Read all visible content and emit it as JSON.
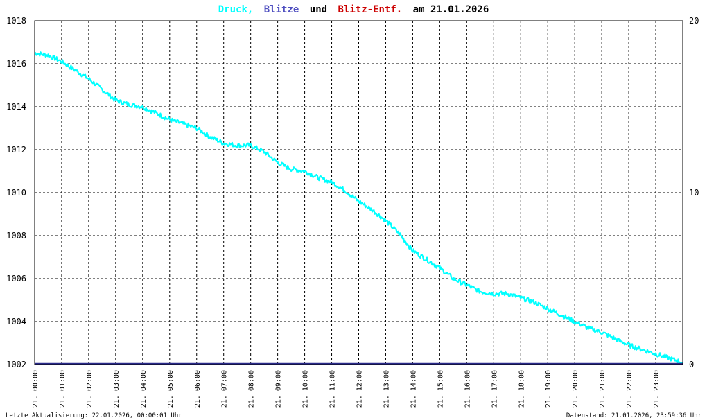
{
  "title": {
    "part1": "Druck,",
    "part2": "Blitze",
    "part3": "und",
    "part4": "Blitz-Entf.",
    "part5": "am 21.01.2026"
  },
  "colors": {
    "pressure": "#00ffff",
    "lightning": "#5050c0",
    "distance": "#cc0000",
    "text": "#000000",
    "grid": "#000000",
    "blitz_line": "#2a2a8a"
  },
  "footer": {
    "left": "Letzte Aktualisierung: 22.01.2026, 00:00:01 Uhr",
    "right": "Datenstand: 21.01.2026, 23:59:36 Uhr"
  },
  "chart_data": {
    "type": "line",
    "title": "Druck, Blitze und Blitz-Entf. am 21.01.2026",
    "x_ticks": [
      "21. 00:00",
      "21. 01:00",
      "21. 02:00",
      "21. 03:00",
      "21. 04:00",
      "21. 05:00",
      "21. 06:00",
      "21. 07:00",
      "21. 08:00",
      "21. 09:00",
      "21. 10:00",
      "21. 11:00",
      "21. 12:00",
      "21. 13:00",
      "21. 14:00",
      "21. 15:00",
      "21. 16:00",
      "21. 17:00",
      "21. 18:00",
      "21. 19:00",
      "21. 20:00",
      "21. 21:00",
      "21. 22:00",
      "21. 23:00"
    ],
    "y_left": {
      "ticks": [
        1002,
        1004,
        1006,
        1008,
        1010,
        1012,
        1014,
        1016,
        1018
      ],
      "range": [
        1002,
        1018
      ]
    },
    "y_right": {
      "ticks": [
        0,
        10,
        20
      ],
      "range": [
        0,
        20
      ]
    },
    "x_range_hours": [
      0,
      24
    ],
    "grid": true,
    "series": [
      {
        "name": "Druck",
        "axis": "left",
        "x_hours": [
          0.0,
          0.5,
          1.0,
          1.5,
          2.0,
          2.5,
          3.0,
          3.5,
          4.0,
          4.5,
          5.0,
          5.5,
          6.0,
          6.5,
          7.0,
          7.5,
          8.0,
          8.5,
          9.0,
          9.5,
          10.0,
          10.5,
          11.0,
          11.5,
          12.0,
          12.5,
          13.0,
          13.5,
          14.0,
          14.5,
          15.0,
          15.5,
          16.0,
          16.5,
          17.0,
          17.5,
          18.0,
          18.5,
          19.0,
          19.5,
          20.0,
          20.5,
          21.0,
          21.5,
          22.0,
          22.5,
          23.0,
          23.5,
          23.98
        ],
        "values": [
          1016.5,
          1016.4,
          1016.1,
          1015.7,
          1015.3,
          1014.8,
          1014.3,
          1014.1,
          1014.0,
          1013.7,
          1013.4,
          1013.2,
          1013.0,
          1012.6,
          1012.3,
          1012.2,
          1012.2,
          1011.9,
          1011.4,
          1011.1,
          1011.0,
          1010.7,
          1010.5,
          1010.1,
          1009.6,
          1009.2,
          1008.7,
          1008.1,
          1007.3,
          1006.9,
          1006.5,
          1006.0,
          1005.7,
          1005.4,
          1005.3,
          1005.3,
          1005.1,
          1004.9,
          1004.6,
          1004.3,
          1004.0,
          1003.7,
          1003.5,
          1003.2,
          1002.9,
          1002.7,
          1002.5,
          1002.3,
          1002.1
        ]
      },
      {
        "name": "Blitze",
        "axis": "right",
        "x_hours": [
          0,
          24
        ],
        "values": [
          0,
          0
        ]
      }
    ]
  }
}
